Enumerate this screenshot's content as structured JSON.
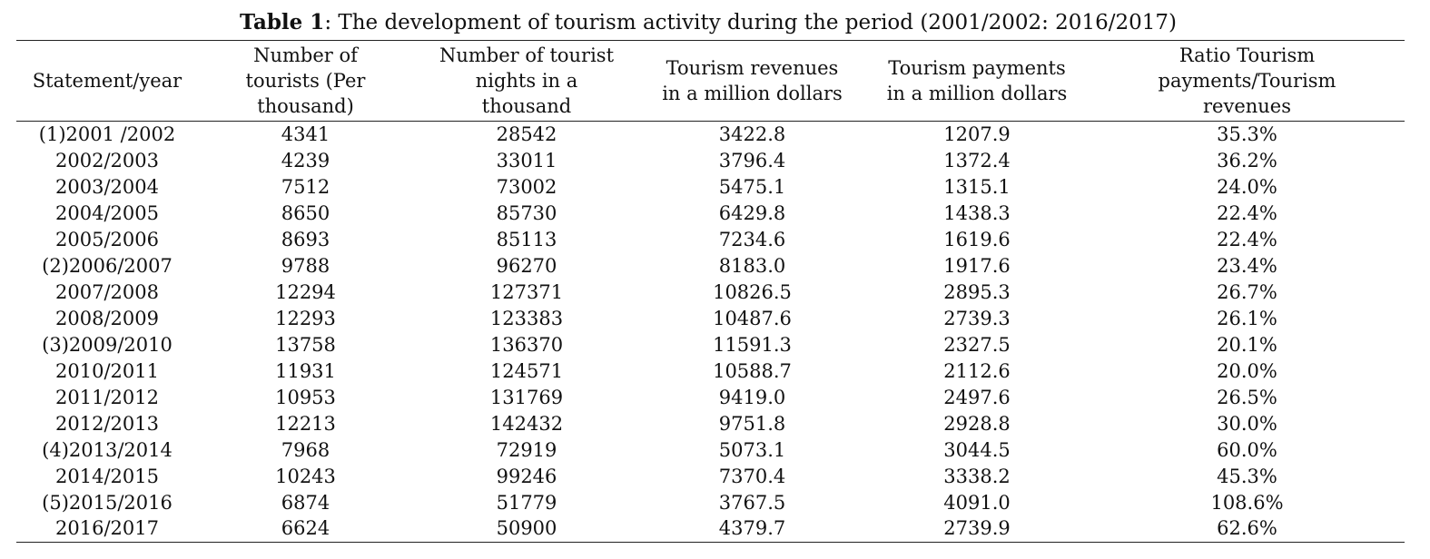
{
  "caption": {
    "label": "Table 1",
    "text": ": The development of tourism activity during the period (2001/2002: 2016/2017)"
  },
  "table": {
    "headers": [
      "Statement/year",
      "Number of tourists (Per thousand)",
      "Number of tourist nights in a thousand",
      "Tourism revenues in a million dollars",
      "Tourism payments in a million dollars",
      "Ratio Tourism payments/Tourism revenues"
    ],
    "rows": [
      [
        "(1)2001 /2002",
        "4341",
        "28542",
        "3422.8",
        "1207.9",
        "35.3%"
      ],
      [
        "2002/2003",
        "4239",
        "33011",
        "3796.4",
        "1372.4",
        "36.2%"
      ],
      [
        "2003/2004",
        "7512",
        "73002",
        "5475.1",
        "1315.1",
        "24.0%"
      ],
      [
        "2004/2005",
        "8650",
        "85730",
        "6429.8",
        "1438.3",
        "22.4%"
      ],
      [
        "2005/2006",
        "8693",
        "85113",
        "7234.6",
        "1619.6",
        "22.4%"
      ],
      [
        "(2)2006/2007",
        "9788",
        "96270",
        "8183.0",
        "1917.6",
        "23.4%"
      ],
      [
        "2007/2008",
        "12294",
        "127371",
        "10826.5",
        "2895.3",
        "26.7%"
      ],
      [
        "2008/2009",
        "12293",
        "123383",
        "10487.6",
        "2739.3",
        "26.1%"
      ],
      [
        "(3)2009/2010",
        "13758",
        "136370",
        "11591.3",
        "2327.5",
        "20.1%"
      ],
      [
        "2010/2011",
        "11931",
        "124571",
        "10588.7",
        "2112.6",
        "20.0%"
      ],
      [
        "2011/2012",
        "10953",
        "131769",
        "9419.0",
        "2497.6",
        "26.5%"
      ],
      [
        "2012/2013",
        "12213",
        "142432",
        "9751.8",
        "2928.8",
        "30.0%"
      ],
      [
        "(4)2013/2014",
        "7968",
        "72919",
        "5073.1",
        "3044.5",
        "60.0%"
      ],
      [
        "2014/2015",
        "10243",
        "99246",
        "7370.4",
        "3338.2",
        "45.3%"
      ],
      [
        "(5)2015/2016",
        "6874",
        "51779",
        "3767.5",
        "4091.0",
        "108.6%"
      ],
      [
        "2016/2017",
        "6624",
        "50900",
        "4379.7",
        "2739.9",
        "62.6%"
      ]
    ]
  }
}
